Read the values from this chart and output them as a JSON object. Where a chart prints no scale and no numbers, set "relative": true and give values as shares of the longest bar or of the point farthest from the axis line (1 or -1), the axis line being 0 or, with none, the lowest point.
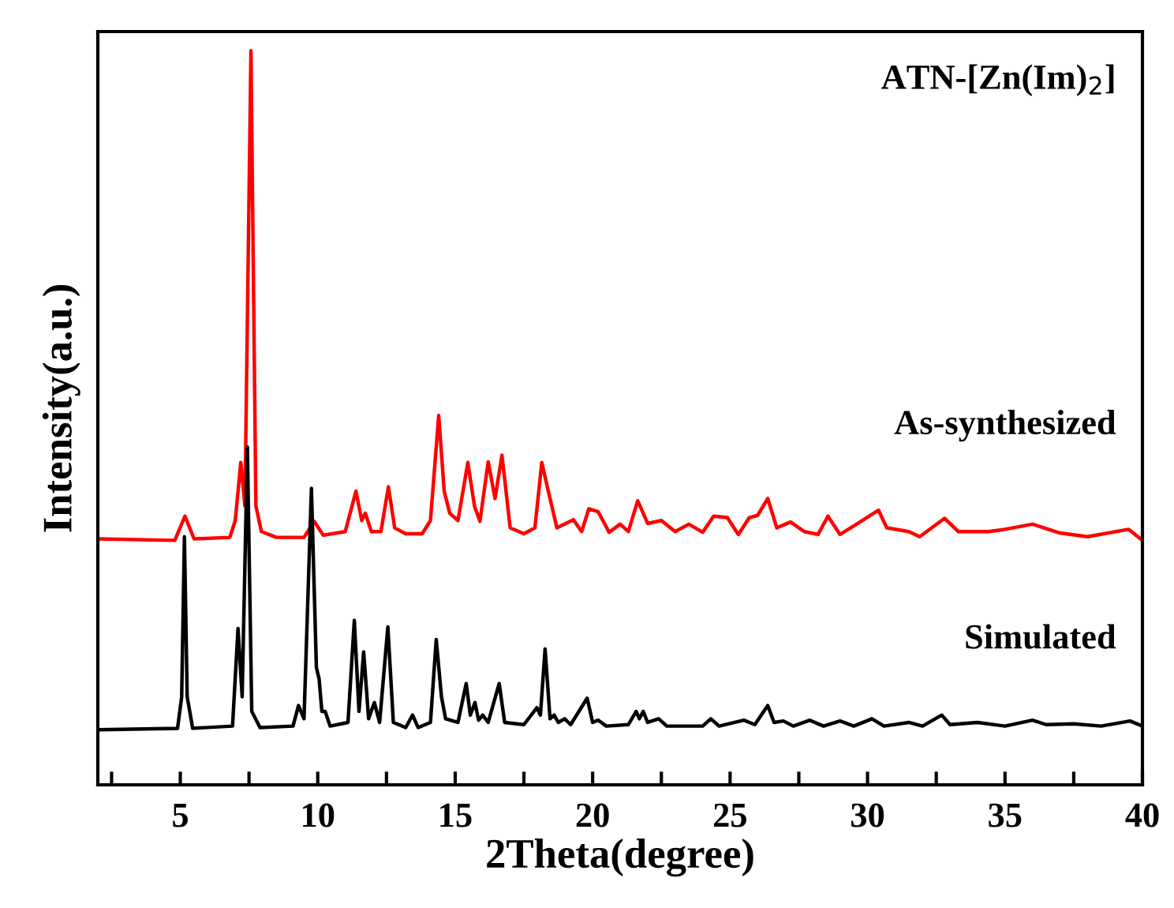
{
  "chart_data": {
    "type": "line",
    "relative": true,
    "xlabel": "2Theta(degree)",
    "ylabel": "Intensity(a.u.)",
    "annotations": [
      "ATN-[Zn(Im)$_{2}$]"
    ],
    "xlim": [
      2,
      40
    ],
    "xticks": [
      {
        "value": 2.5,
        "label": null
      },
      5,
      {
        "value": 7.5,
        "label": null
      },
      10,
      {
        "value": 12.5,
        "label": null
      },
      15,
      {
        "value": 17.5,
        "label": null
      },
      20,
      {
        "value": 22.5,
        "label": null
      },
      25,
      {
        "value": 27.5,
        "label": null
      },
      30,
      {
        "value": 32.5,
        "label": null
      },
      35,
      {
        "value": 37.5,
        "label": null
      },
      40
    ],
    "grid": false,
    "legend": false,
    "marker": "none",
    "line_style": "solid",
    "series": [
      {
        "name": "As-synthesized",
        "color": "#ff0000",
        "x": [
          2.0,
          4.8,
          5.17,
          5.5,
          6.8,
          7.0,
          7.2,
          7.35,
          7.57,
          7.75,
          7.95,
          8.5,
          9.5,
          9.87,
          10.2,
          11.0,
          11.39,
          11.6,
          11.73,
          11.95,
          12.3,
          12.57,
          12.8,
          13.2,
          13.8,
          14.1,
          14.4,
          14.6,
          14.8,
          15.1,
          15.46,
          15.7,
          15.9,
          16.2,
          16.45,
          16.7,
          17.0,
          17.5,
          17.9,
          18.15,
          18.4,
          18.7,
          19.3,
          19.6,
          19.86,
          20.2,
          20.6,
          21.0,
          21.3,
          21.64,
          22.0,
          22.5,
          23.0,
          23.5,
          24.0,
          24.4,
          24.9,
          25.3,
          25.7,
          26.0,
          26.37,
          26.7,
          27.2,
          27.7,
          28.2,
          28.56,
          29.0,
          29.6,
          30.4,
          30.7,
          31.5,
          31.9,
          32.8,
          33.3,
          34.4,
          35.0,
          36.0,
          37.0,
          38.0,
          39.5,
          40.0
        ],
        "values": [
          0.335,
          0.333,
          0.366,
          0.335,
          0.337,
          0.36,
          0.439,
          0.38,
          1.0,
          0.38,
          0.345,
          0.337,
          0.337,
          0.359,
          0.34,
          0.345,
          0.4,
          0.36,
          0.37,
          0.345,
          0.345,
          0.406,
          0.35,
          0.342,
          0.342,
          0.36,
          0.503,
          0.4,
          0.37,
          0.36,
          0.439,
          0.38,
          0.359,
          0.44,
          0.39,
          0.449,
          0.35,
          0.342,
          0.35,
          0.439,
          0.398,
          0.35,
          0.361,
          0.345,
          0.376,
          0.372,
          0.344,
          0.355,
          0.345,
          0.387,
          0.356,
          0.36,
          0.345,
          0.355,
          0.344,
          0.366,
          0.364,
          0.341,
          0.364,
          0.367,
          0.39,
          0.35,
          0.358,
          0.345,
          0.341,
          0.366,
          0.341,
          0.355,
          0.374,
          0.35,
          0.345,
          0.338,
          0.363,
          0.345,
          0.345,
          0.348,
          0.355,
          0.343,
          0.338,
          0.348,
          0.333
        ]
      },
      {
        "name": "Simulated",
        "color": "#000000",
        "x": [
          2.0,
          4.9,
          5.05,
          5.15,
          5.25,
          5.45,
          6.9,
          7.1,
          7.25,
          7.44,
          7.6,
          7.9,
          9.1,
          9.3,
          9.5,
          9.77,
          9.95,
          10.05,
          10.15,
          10.27,
          10.45,
          11.1,
          11.33,
          11.5,
          11.67,
          11.85,
          12.06,
          12.25,
          12.55,
          12.75,
          13.2,
          13.45,
          13.65,
          14.1,
          14.31,
          14.5,
          14.65,
          15.1,
          15.4,
          15.55,
          15.72,
          15.85,
          16.0,
          16.2,
          16.6,
          16.8,
          17.5,
          17.97,
          18.1,
          18.27,
          18.45,
          18.6,
          18.75,
          18.98,
          19.2,
          19.8,
          20.0,
          20.2,
          20.5,
          21.3,
          21.58,
          21.7,
          21.84,
          22.0,
          22.4,
          22.7,
          24.0,
          24.3,
          24.6,
          25.5,
          25.9,
          26.37,
          26.6,
          26.94,
          27.3,
          27.9,
          28.4,
          29.0,
          29.5,
          30.16,
          30.6,
          31.5,
          32.0,
          32.7,
          33.0,
          34.0,
          35.0,
          36.0,
          36.5,
          37.5,
          38.5,
          39.55,
          40.0
        ],
        "values": [
          0.075,
          0.077,
          0.12,
          0.338,
          0.12,
          0.077,
          0.08,
          0.213,
          0.12,
          0.46,
          0.1,
          0.078,
          0.08,
          0.108,
          0.09,
          0.404,
          0.16,
          0.144,
          0.1,
          0.1,
          0.08,
          0.085,
          0.224,
          0.1,
          0.181,
          0.09,
          0.112,
          0.085,
          0.215,
          0.085,
          0.078,
          0.095,
          0.078,
          0.085,
          0.198,
          0.12,
          0.09,
          0.085,
          0.138,
          0.095,
          0.112,
          0.088,
          0.095,
          0.085,
          0.138,
          0.085,
          0.082,
          0.105,
          0.095,
          0.185,
          0.09,
          0.095,
          0.085,
          0.09,
          0.082,
          0.118,
          0.085,
          0.088,
          0.08,
          0.082,
          0.1,
          0.09,
          0.1,
          0.085,
          0.09,
          0.08,
          0.08,
          0.09,
          0.08,
          0.088,
          0.082,
          0.108,
          0.085,
          0.087,
          0.08,
          0.088,
          0.08,
          0.087,
          0.08,
          0.09,
          0.08,
          0.085,
          0.08,
          0.095,
          0.082,
          0.085,
          0.08,
          0.088,
          0.082,
          0.083,
          0.08,
          0.087,
          0.08
        ]
      }
    ]
  }
}
